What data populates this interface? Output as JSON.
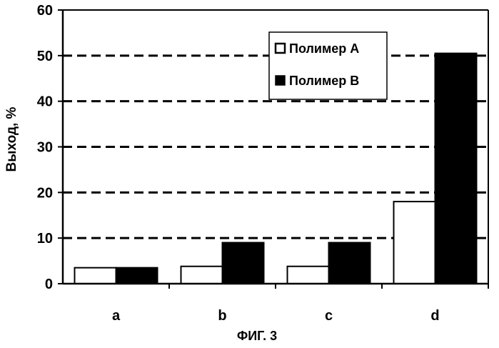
{
  "chart_data": {
    "type": "bar",
    "categories": [
      "a",
      "b",
      "c",
      "d"
    ],
    "series": [
      {
        "name": "Полимер A",
        "color": "#ffffff",
        "values": [
          3.5,
          3.8,
          3.8,
          18
        ]
      },
      {
        "name": "Полимер B",
        "color": "#000000",
        "values": [
          3.5,
          9,
          9,
          50.5
        ]
      }
    ],
    "ylabel": "Выход, %",
    "xlabel": "",
    "ylim": [
      0,
      60
    ],
    "yticks": [
      0,
      10,
      20,
      30,
      40,
      50,
      60
    ],
    "grid": "dashed horizontal",
    "legend_position": "top-right"
  },
  "caption": "ФИГ. 3"
}
